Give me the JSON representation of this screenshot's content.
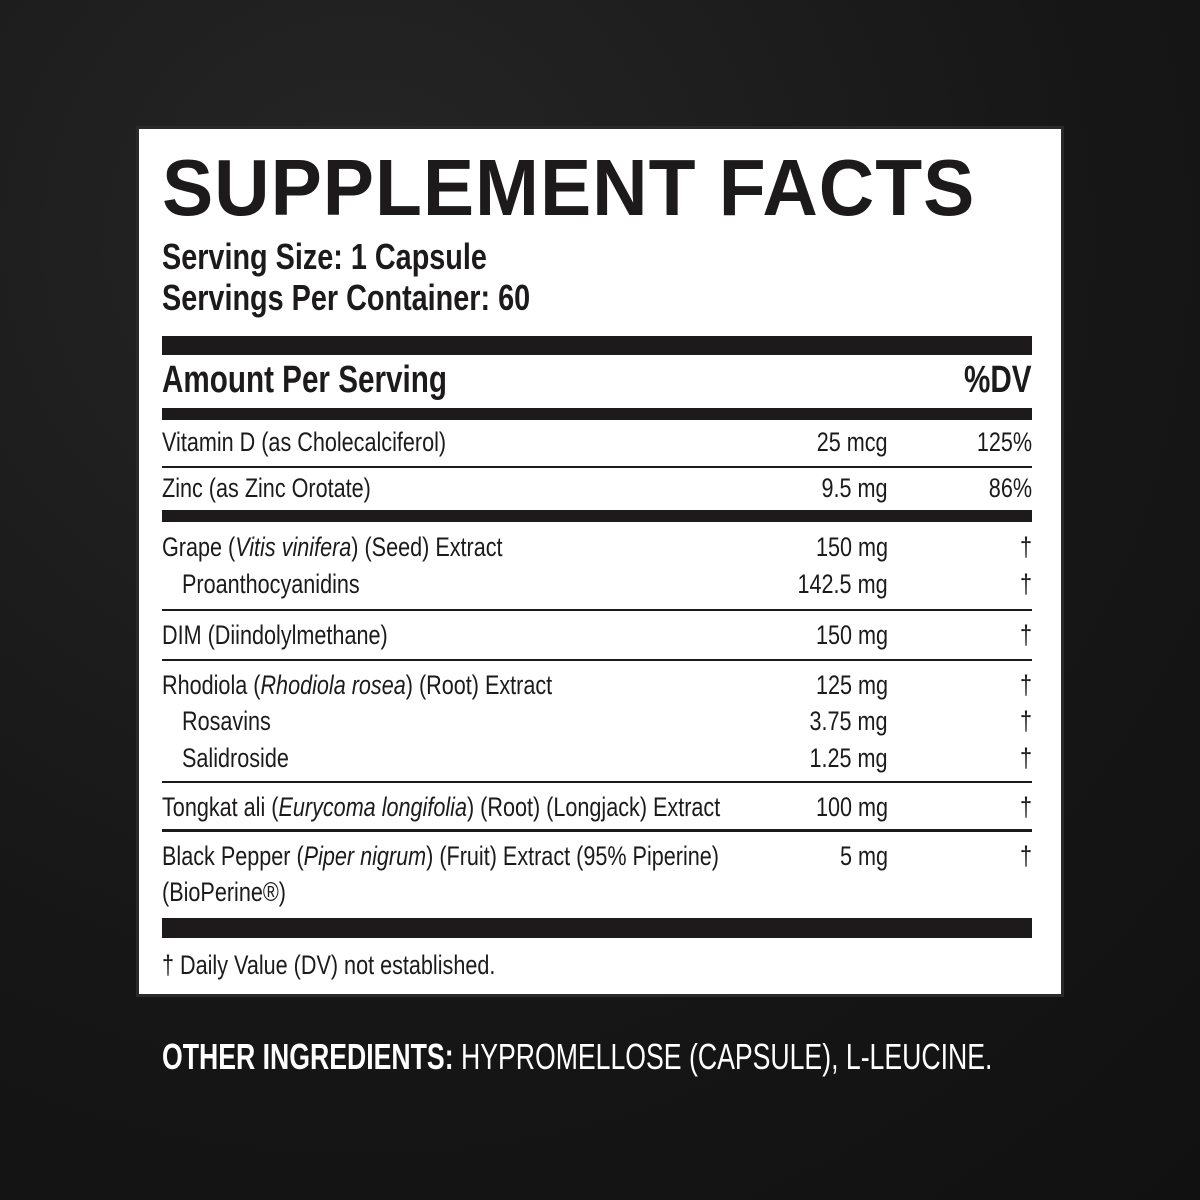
{
  "title": "SUPPLEMENT FACTS",
  "serving_size": "Serving Size: 1 Capsule",
  "servings_per_container": "Servings Per Container: 60",
  "header": {
    "amount": "Amount Per Serving",
    "dv": "%DV"
  },
  "rows": [
    {
      "pre": "Vitamin D (as Cholecalciferol)",
      "it": "",
      "post": "",
      "amount": "25 mcg",
      "dv": "125%"
    },
    {
      "pre": "Zinc (as Zinc Orotate)",
      "it": "",
      "post": "",
      "amount": "9.5 mg",
      "dv": "86%"
    },
    {
      "pre": "Grape (",
      "it": "Vitis vinifera",
      "post": ") (Seed) Extract",
      "amount": "150 mg",
      "dv": "†"
    },
    {
      "pre": "Proanthocyanidins",
      "it": "",
      "post": "",
      "amount": "142.5 mg",
      "dv": "†"
    },
    {
      "pre": "DIM (Diindolylmethane)",
      "it": "",
      "post": "",
      "amount": "150 mg",
      "dv": "†"
    },
    {
      "pre": "Rhodiola (",
      "it": "Rhodiola rosea",
      "post": ") (Root) Extract",
      "amount": "125 mg",
      "dv": "†"
    },
    {
      "pre": "Rosavins",
      "it": "",
      "post": "",
      "amount": "3.75 mg",
      "dv": "†"
    },
    {
      "pre": "Salidroside",
      "it": "",
      "post": "",
      "amount": "1.25 mg",
      "dv": "†"
    },
    {
      "pre": "Tongkat ali (",
      "it": "Eurycoma longifolia",
      "post": ") (Root) (Longjack) Extract",
      "amount": "100 mg",
      "dv": "†"
    },
    {
      "pre": "Black Pepper (",
      "it": "Piper nigrum",
      "post": ") (Fruit) Extract (95% Piperine)",
      "line2": "(BioPerine®)",
      "amount": "5 mg",
      "dv": "†"
    }
  ],
  "footnote": "† Daily Value (DV) not established.",
  "other_ingredients": {
    "label": "OTHER INGREDIENTS:",
    "value": " HYPROMELLOSE (CAPSULE), L-LEUCINE."
  }
}
